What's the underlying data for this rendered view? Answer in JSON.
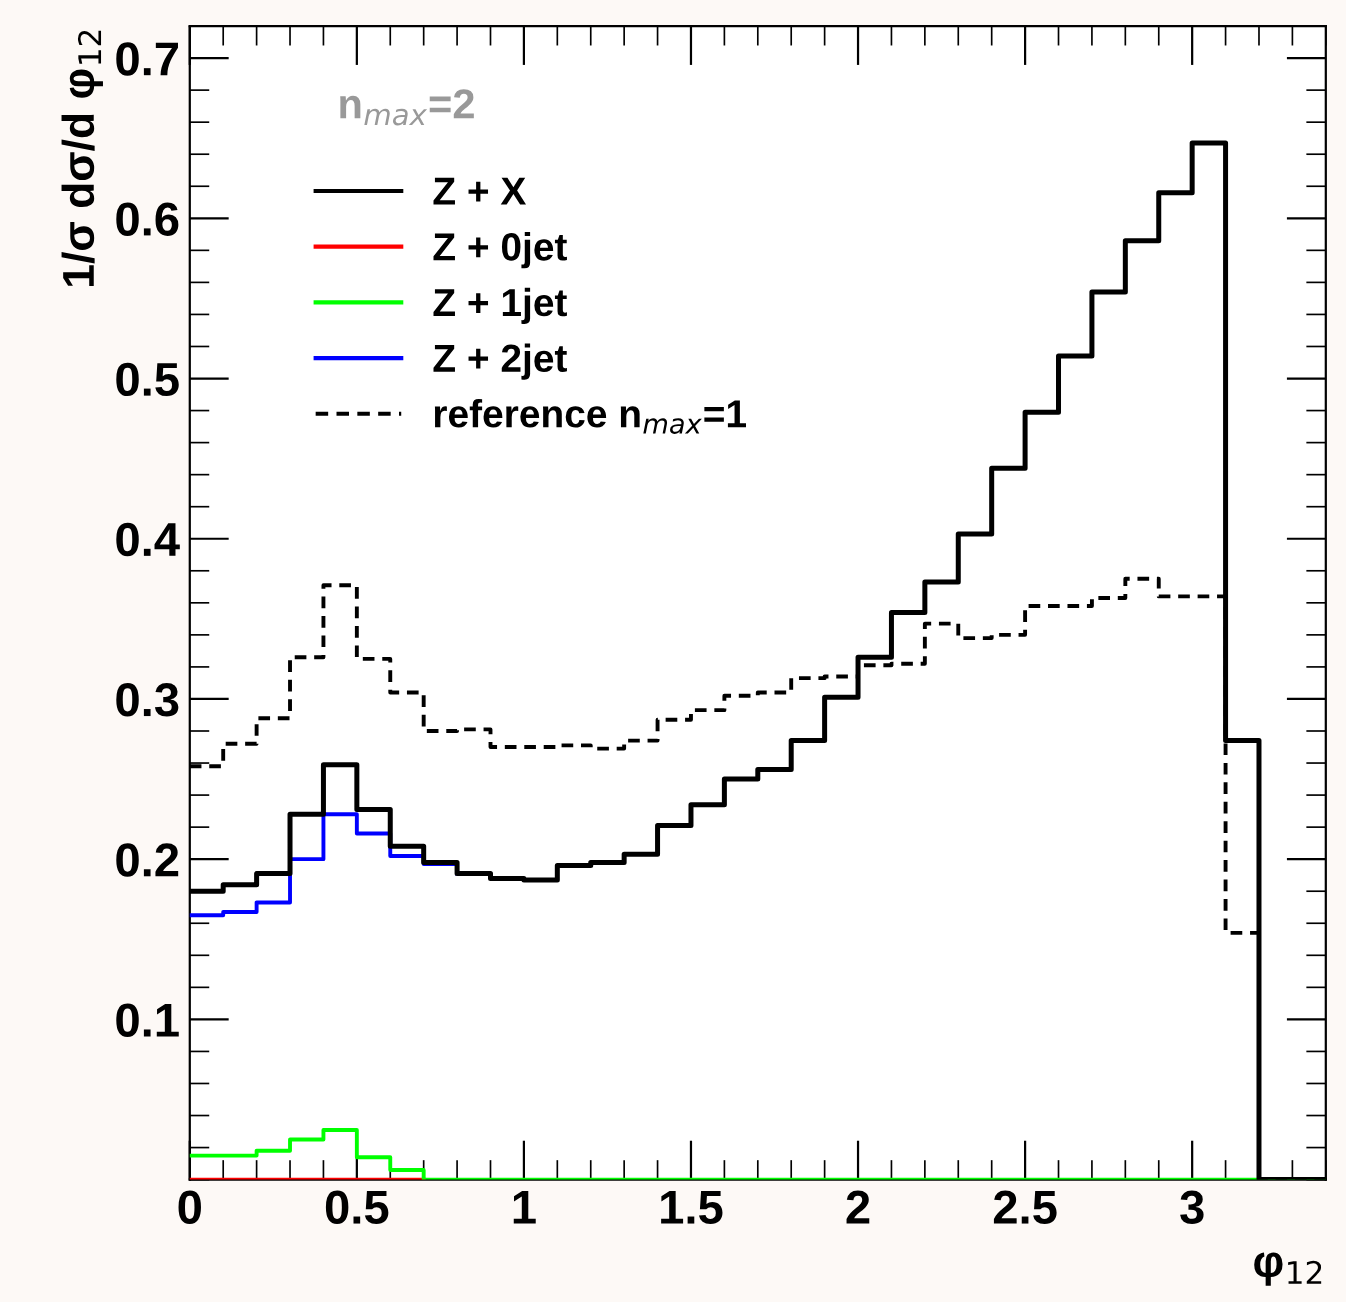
{
  "chart_data": {
    "type": "step",
    "xlabel": "φ$_{12}$",
    "ylabel": "1/σ dσ/d φ$_{12}$",
    "annotations": [
      "n$_{max}$=2"
    ],
    "x": [
      0,
      0.1,
      0.2,
      0.3,
      0.4,
      0.5,
      0.6,
      0.7,
      0.8,
      0.9,
      1.0,
      1.1,
      1.2,
      1.3,
      1.4,
      1.5,
      1.6,
      1.7,
      1.8,
      1.9,
      2.0,
      2.1,
      2.2,
      2.3,
      2.4,
      2.5,
      2.6,
      2.7,
      2.8,
      2.9,
      3.0,
      3.1,
      3.2,
      3.3,
      3.4
    ],
    "series": [
      {
        "name": "Z + X",
        "color": "#000000",
        "values": [
          0.18,
          0.184,
          0.191,
          0.228,
          0.259,
          0.231,
          0.208,
          0.198,
          0.191,
          0.188,
          0.187,
          0.196,
          0.198,
          0.203,
          0.221,
          0.234,
          0.25,
          0.256,
          0.274,
          0.301,
          0.326,
          0.354,
          0.373,
          0.403,
          0.444,
          0.479,
          0.514,
          0.554,
          0.586,
          0.616,
          0.647,
          0.274,
          0,
          0,
          0
        ]
      },
      {
        "name": "Z + 0jet",
        "color": "#ff0000",
        "values": [
          0,
          0,
          0,
          0,
          0,
          0,
          0,
          0,
          null,
          null,
          null,
          null,
          null,
          null,
          null,
          null,
          null,
          null,
          null,
          null,
          null,
          null,
          null,
          null,
          null,
          null,
          null,
          null,
          null,
          null,
          null,
          null,
          null,
          null,
          null
        ]
      },
      {
        "name": "Z + 1jet",
        "color": "#00ff00",
        "values": [
          0.015,
          0.015,
          0.018,
          0.025,
          0.031,
          0.014,
          0.006,
          0,
          0,
          0,
          0,
          0,
          0,
          0,
          0,
          0,
          0,
          0,
          0,
          0,
          0,
          0,
          0,
          0,
          0,
          0,
          0,
          0,
          0,
          0,
          0,
          0,
          0,
          0,
          0
        ]
      },
      {
        "name": "Z + 2jet",
        "color": "#0000ff",
        "values": [
          0.165,
          0.167,
          0.173,
          0.2,
          0.228,
          0.216,
          0.202,
          0.197,
          0.191,
          null,
          null,
          null,
          null,
          null,
          null,
          null,
          null,
          null,
          null,
          null,
          null,
          null,
          null,
          null,
          null,
          null,
          null,
          null,
          null,
          null,
          null,
          null,
          null,
          null,
          null
        ]
      },
      {
        "name": "reference n$_{max}$=1",
        "color": "#000000",
        "line_style": "dashed",
        "values": [
          0.258,
          0.272,
          0.288,
          0.326,
          0.371,
          0.325,
          0.304,
          0.28,
          0.281,
          0.27,
          0.27,
          0.271,
          0.269,
          0.274,
          0.287,
          0.293,
          0.302,
          0.304,
          0.313,
          0.314,
          0.321,
          0.322,
          0.347,
          0.338,
          0.34,
          0.358,
          0.358,
          0.363,
          0.375,
          0.364,
          0.364,
          0.154,
          0,
          0,
          0
        ]
      }
    ],
    "xlim": [
      0,
      3.4
    ],
    "ylim": [
      0,
      0.72
    ],
    "xticks": [
      0,
      0.5,
      1,
      1.5,
      2,
      2.5,
      3
    ],
    "yticks": [
      0.1,
      0.2,
      0.3,
      0.4,
      0.5,
      0.6,
      0.7
    ],
    "grid": false,
    "legend": "top left"
  }
}
